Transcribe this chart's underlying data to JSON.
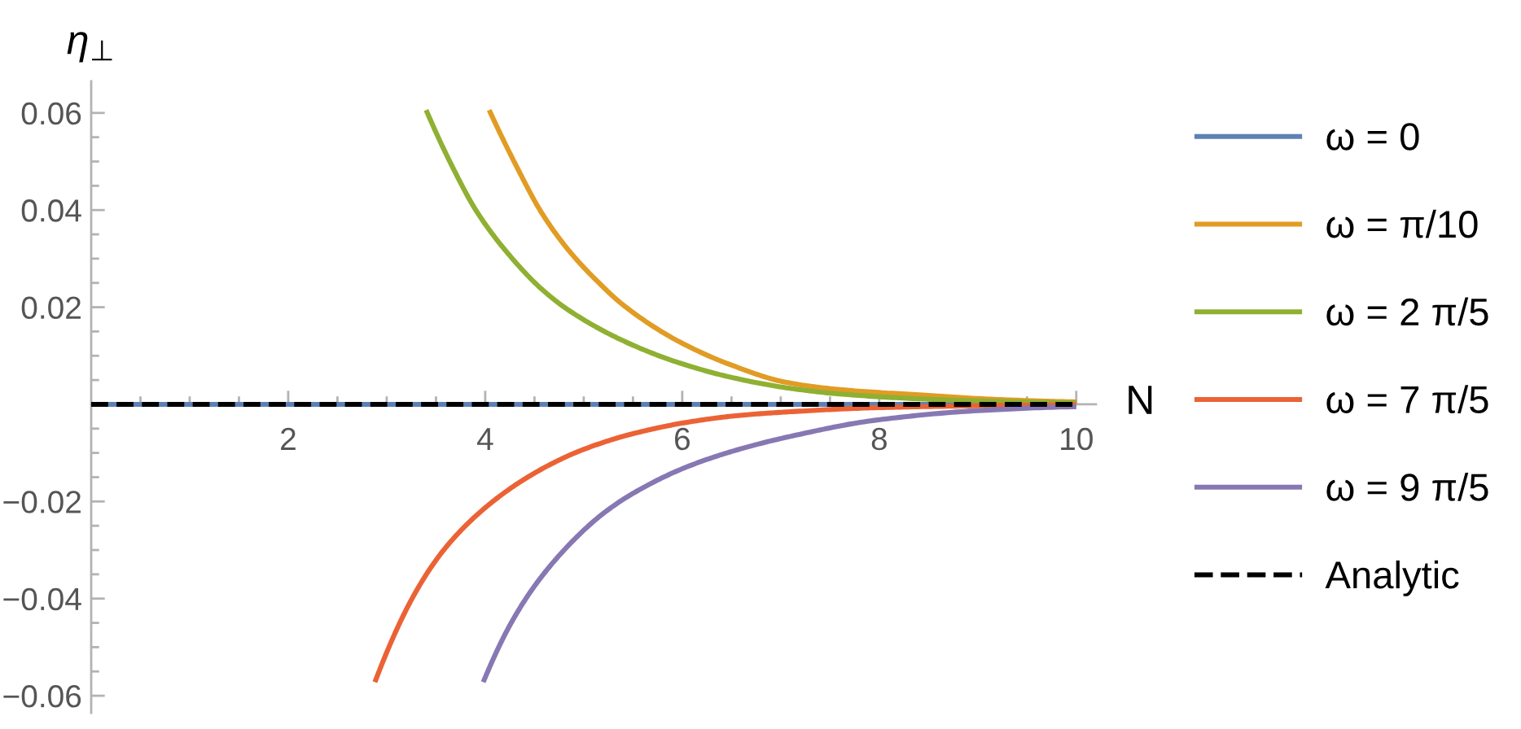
{
  "chart_data": {
    "type": "line",
    "xlabel": "N",
    "ylabel": "η$_{⊥}$",
    "legend": "right",
    "xlim": [
      0,
      10.2
    ],
    "ylim": [
      -0.0635,
      0.0665
    ],
    "xticks": [
      {
        "value": 0.5,
        "label": null
      },
      {
        "value": 1,
        "label": null
      },
      {
        "value": 1.5,
        "label": null
      },
      2,
      {
        "value": 2.5,
        "label": null
      },
      {
        "value": 3,
        "label": null
      },
      {
        "value": 3.5,
        "label": null
      },
      4,
      {
        "value": 4.5,
        "label": null
      },
      {
        "value": 5,
        "label": null
      },
      {
        "value": 5.5,
        "label": null
      },
      6,
      {
        "value": 6.5,
        "label": null
      },
      {
        "value": 7,
        "label": null
      },
      {
        "value": 7.5,
        "label": null
      },
      8,
      {
        "value": 8.5,
        "label": null
      },
      {
        "value": 9,
        "label": null
      },
      {
        "value": 9.5,
        "label": null
      },
      10
    ],
    "yticks": [
      {
        "value": -0.06,
        "label": "−0.06"
      },
      {
        "value": -0.055,
        "label": null
      },
      {
        "value": -0.05,
        "label": null
      },
      {
        "value": -0.045,
        "label": null
      },
      {
        "value": -0.04,
        "label": "−0.04"
      },
      {
        "value": -0.035,
        "label": null
      },
      {
        "value": -0.03,
        "label": null
      },
      {
        "value": -0.025,
        "label": null
      },
      {
        "value": -0.02,
        "label": "−0.02"
      },
      {
        "value": -0.015,
        "label": null
      },
      {
        "value": -0.01,
        "label": null
      },
      {
        "value": -0.005,
        "label": null
      },
      {
        "value": 0.005,
        "label": null
      },
      {
        "value": 0.01,
        "label": null
      },
      {
        "value": 0.015,
        "label": null
      },
      0.02,
      {
        "value": 0.025,
        "label": null
      },
      {
        "value": 0.03,
        "label": null
      },
      {
        "value": 0.035,
        "label": null
      },
      0.04,
      {
        "value": 0.045,
        "label": null
      },
      {
        "value": 0.05,
        "label": null
      },
      {
        "value": 0.055,
        "label": null
      },
      0.06
    ],
    "series": [
      {
        "name": "ω = 0",
        "color": "#5e81b5",
        "x": [
          0,
          10
        ],
        "values": [
          0,
          0
        ]
      },
      {
        "name": "ω = π/10",
        "color": "#e19c24",
        "x": [
          4.04,
          4.31,
          4.58,
          4.86,
          5.14,
          5.41,
          5.96,
          6.51,
          7.06,
          7.62,
          8.44,
          9.2,
          10
        ],
        "values": [
          0.0606,
          0.0493,
          0.0392,
          0.0314,
          0.0253,
          0.0203,
          0.013,
          0.008,
          0.0045,
          0.003,
          0.0019,
          0.001,
          0.0005
        ]
      },
      {
        "name": "ω = 2 π/5",
        "color": "#8fb032",
        "x": [
          3.4,
          3.65,
          3.92,
          4.31,
          4.58,
          4.86,
          5.41,
          5.96,
          6.51,
          7.06,
          7.62,
          8.44,
          9.2,
          10
        ],
        "values": [
          0.0606,
          0.0496,
          0.0395,
          0.0292,
          0.0236,
          0.0192,
          0.013,
          0.0086,
          0.0055,
          0.0034,
          0.0021,
          0.0011,
          0.0006,
          0.0003
        ]
      },
      {
        "name": "ω = 7 π/5",
        "color": "#eb6235",
        "x": [
          2.88,
          3.26,
          3.54,
          3.81,
          4.09,
          4.36,
          4.64,
          4.91,
          5.19,
          5.47,
          6.02,
          6.57,
          7.12,
          7.95,
          9.0,
          10
        ],
        "values": [
          -0.0572,
          -0.0399,
          -0.031,
          -0.0248,
          -0.0198,
          -0.0159,
          -0.0126,
          -0.01,
          -0.0079,
          -0.0062,
          -0.0038,
          -0.0023,
          -0.0015,
          -0.0007,
          -0.0003,
          -0.0001
        ]
      },
      {
        "name": "ω = 9 π/5",
        "color": "#8778b3",
        "x": [
          3.98,
          4.25,
          4.53,
          4.91,
          5.19,
          5.47,
          6.02,
          6.57,
          7.12,
          7.95,
          9.0,
          10
        ],
        "values": [
          -0.0572,
          -0.0455,
          -0.0366,
          -0.0277,
          -0.0226,
          -0.0187,
          -0.0131,
          -0.0093,
          -0.0065,
          -0.0033,
          -0.0013,
          -0.0005
        ]
      },
      {
        "name": "Analytic",
        "color": "#000000",
        "line_style": "dashed",
        "x": [
          0,
          10
        ],
        "values": [
          0,
          0
        ]
      }
    ]
  }
}
